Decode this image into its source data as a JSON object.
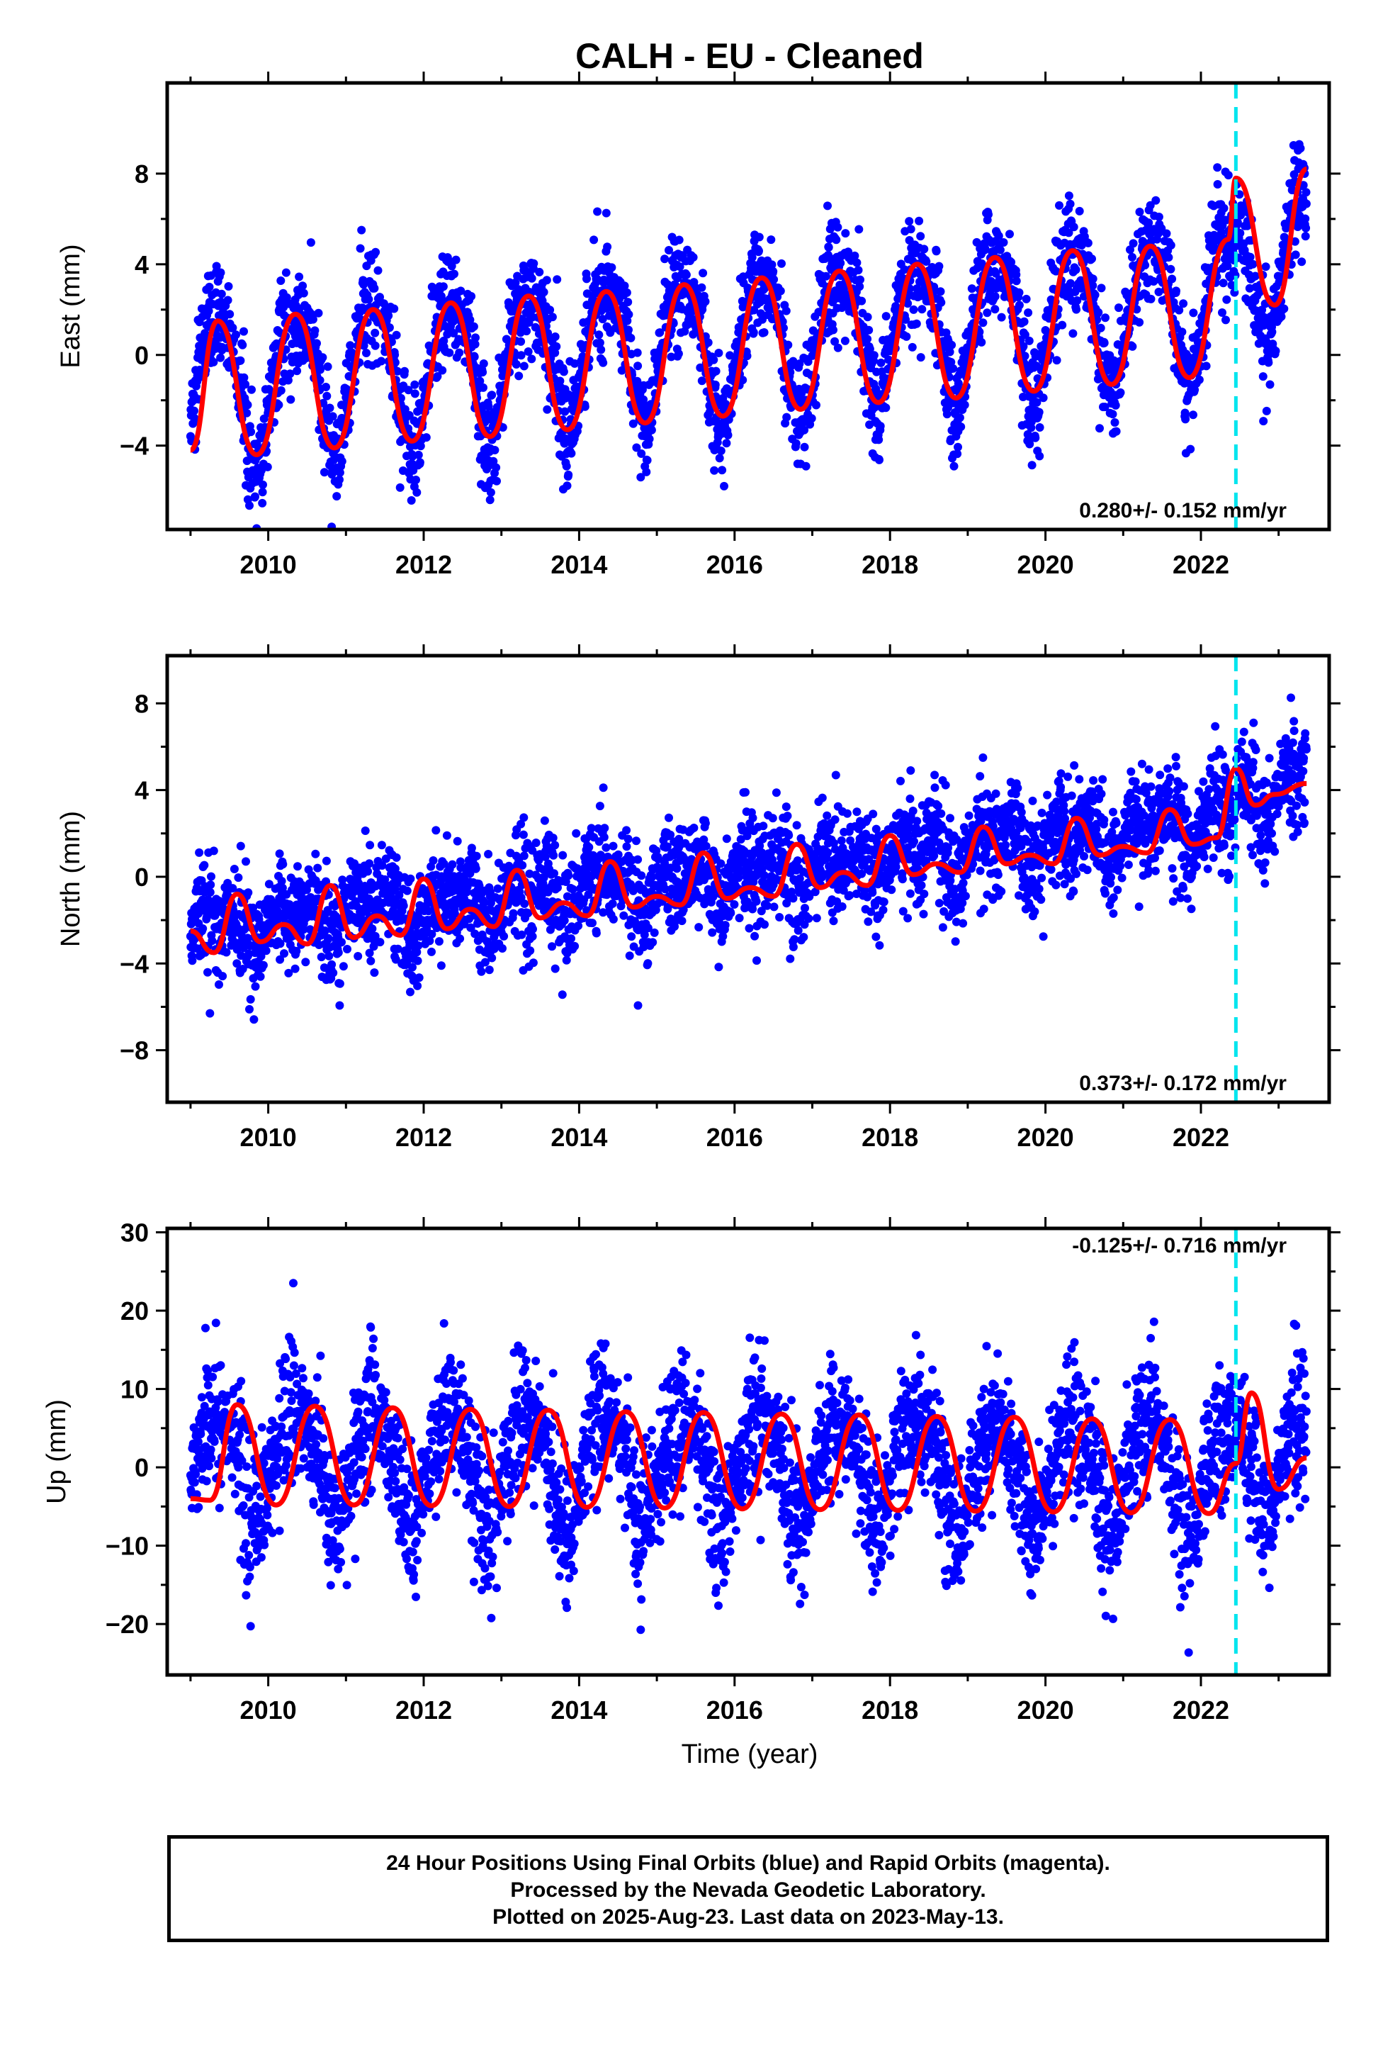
{
  "chart_data": [
    {
      "type": "scatter",
      "title": "CALH  - EU - Cleaned",
      "xlabel": "",
      "ylabel": "East (mm)",
      "xlim": [
        2008.7,
        2023.65
      ],
      "ylim": [
        -7.7,
        12.0
      ],
      "xticks": [
        2010,
        2012,
        2014,
        2016,
        2018,
        2020,
        2022
      ],
      "yticks": [
        -4,
        0,
        4,
        8
      ],
      "annotation": "0.280+/- 0.152 mm/yr",
      "vline_year": 2022.45,
      "series": [
        {
          "kind": "points",
          "color": "#0000ff",
          "model": {
            "trend": 0.28,
            "offset": -1.3,
            "amp1": 3.0,
            "amp2": 0.6,
            "jump": 1.6,
            "noise": 1.35,
            "t0": 2009.0,
            "t1": 2023.36
          }
        },
        {
          "kind": "fit",
          "color": "#ff0000",
          "x": [
            2009.0,
            2009.35,
            2009.85,
            2010.35,
            2010.85,
            2011.35,
            2011.85,
            2012.35,
            2012.85,
            2013.35,
            2013.85,
            2014.35,
            2014.85,
            2015.35,
            2015.85,
            2016.35,
            2016.85,
            2017.35,
            2017.85,
            2018.35,
            2018.85,
            2019.35,
            2019.85,
            2020.35,
            2020.85,
            2021.35,
            2021.85,
            2022.35,
            2022.45,
            2022.95,
            2023.36
          ],
          "y": [
            -4.2,
            1.5,
            -4.4,
            1.8,
            -4.1,
            2.0,
            -3.8,
            2.3,
            -3.6,
            2.6,
            -3.3,
            2.8,
            -3.0,
            3.1,
            -2.7,
            3.4,
            -2.4,
            3.7,
            -2.1,
            4.0,
            -1.9,
            4.3,
            -1.6,
            4.6,
            -1.3,
            4.8,
            -1.0,
            5.1,
            7.8,
            2.2,
            8.2
          ]
        }
      ]
    },
    {
      "type": "scatter",
      "title": "",
      "xlabel": "",
      "ylabel": "North (mm)",
      "xlim": [
        2008.7,
        2023.65
      ],
      "ylim": [
        -10.4,
        10.2
      ],
      "xticks": [
        2010,
        2012,
        2014,
        2016,
        2018,
        2020,
        2022
      ],
      "yticks": [
        -8,
        -4,
        0,
        4,
        8
      ],
      "annotation": "0.373+/- 0.172 mm/yr",
      "vline_year": 2022.45,
      "series": [
        {
          "kind": "points",
          "color": "#0000ff",
          "model": {
            "trend": 0.373,
            "offset": -2.5,
            "amp1": 0.7,
            "amp2": 0.6,
            "jump": 1.5,
            "noise": 1.4,
            "t0": 2009.0,
            "t1": 2023.36
          }
        },
        {
          "kind": "fit",
          "color": "#ff0000",
          "x": [
            2009.0,
            2009.3,
            2009.6,
            2009.9,
            2010.2,
            2010.5,
            2010.8,
            2011.1,
            2011.4,
            2011.7,
            2012.0,
            2012.3,
            2012.6,
            2012.9,
            2013.2,
            2013.5,
            2013.8,
            2014.1,
            2014.4,
            2014.7,
            2015.0,
            2015.3,
            2015.6,
            2015.9,
            2016.2,
            2016.5,
            2016.8,
            2017.1,
            2017.4,
            2017.7,
            2018.0,
            2018.3,
            2018.6,
            2018.9,
            2019.2,
            2019.5,
            2019.8,
            2020.1,
            2020.4,
            2020.7,
            2021.0,
            2021.3,
            2021.6,
            2021.9,
            2022.2,
            2022.45,
            2022.7,
            2022.95,
            2023.36
          ],
          "y": [
            -2.5,
            -3.5,
            -0.8,
            -3.0,
            -2.2,
            -3.1,
            -0.4,
            -2.8,
            -1.8,
            -2.7,
            -0.1,
            -2.4,
            -1.5,
            -2.3,
            0.3,
            -1.9,
            -1.2,
            -1.8,
            0.7,
            -1.4,
            -0.9,
            -1.3,
            1.1,
            -1.0,
            -0.5,
            -0.9,
            1.5,
            -0.5,
            0.2,
            -0.4,
            1.9,
            0.1,
            0.6,
            0.2,
            2.3,
            0.6,
            1.0,
            0.6,
            2.7,
            1.0,
            1.4,
            1.1,
            3.1,
            1.5,
            1.8,
            5.0,
            3.3,
            3.8,
            4.3
          ]
        }
      ]
    },
    {
      "type": "scatter",
      "title": "",
      "xlabel": "Time (year)",
      "ylabel": "Up (mm)",
      "xlim": [
        2008.7,
        2023.65
      ],
      "ylim": [
        -26.5,
        30.5
      ],
      "xticks": [
        2010,
        2012,
        2014,
        2016,
        2018,
        2020,
        2022
      ],
      "yticks": [
        -20,
        -10,
        0,
        10,
        20,
        30
      ],
      "annotation": "-0.125+/- 0.716 mm/yr",
      "vline_year": 2022.45,
      "series": [
        {
          "kind": "points",
          "color": "#0000ff",
          "model": {
            "trend": -0.125,
            "offset": 1.2,
            "amp1": 6.5,
            "amp2": 1.0,
            "jump": 2.0,
            "noise": 5.0,
            "t0": 2009.0,
            "t1": 2023.36
          }
        },
        {
          "kind": "fit",
          "color": "#ff0000",
          "x": [
            2009.0,
            2009.25,
            2009.6,
            2010.1,
            2010.6,
            2011.1,
            2011.6,
            2012.1,
            2012.6,
            2013.1,
            2013.6,
            2014.1,
            2014.6,
            2015.1,
            2015.6,
            2016.1,
            2016.6,
            2017.1,
            2017.6,
            2018.1,
            2018.6,
            2019.1,
            2019.6,
            2020.1,
            2020.6,
            2021.1,
            2021.6,
            2022.1,
            2022.45,
            2022.65,
            2023.0,
            2023.36
          ],
          "y": [
            -4.0,
            -4.2,
            8.0,
            -4.8,
            7.8,
            -4.8,
            7.6,
            -4.9,
            7.4,
            -5.0,
            7.3,
            -5.1,
            7.1,
            -5.2,
            7.0,
            -5.3,
            6.8,
            -5.4,
            6.7,
            -5.5,
            6.5,
            -5.6,
            6.4,
            -5.7,
            6.2,
            -5.8,
            6.1,
            -5.9,
            0.5,
            9.5,
            -2.8,
            1.2
          ]
        }
      ]
    }
  ],
  "caption": {
    "line1": "24 Hour Positions Using Final Orbits (blue) and Rapid Orbits (magenta).",
    "line2": "Processed by the Nevada Geodetic Laboratory.",
    "line3": "Plotted on 2025-Aug-23. Last data on 2023-May-13."
  }
}
